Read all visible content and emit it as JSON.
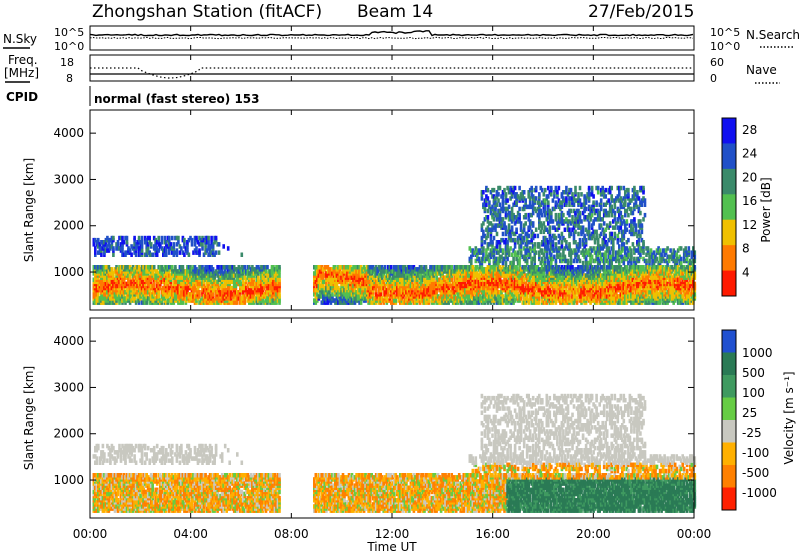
{
  "header": {
    "station_title": "Zhongshan Station (fitACF)",
    "beam": "Beam 14",
    "date": "27/Feb/2015"
  },
  "noise_panel": {
    "left_label": "N.Sky",
    "right_label": "N.Search",
    "left_ticks": [
      "10^5",
      "10^0"
    ],
    "right_ticks": [
      "10^5",
      "10^0"
    ]
  },
  "freq_panel": {
    "left_label_1": "Freq.",
    "left_label_2": "[MHz]",
    "right_label": "Nave",
    "left_ticks": [
      "18",
      "8"
    ],
    "right_ticks": [
      "60",
      "0"
    ]
  },
  "cpid": {
    "label": "CPID",
    "value": "normal (fast stereo) 153"
  },
  "x_axis": {
    "ticks": [
      "00:00",
      "04:00",
      "08:00",
      "12:00",
      "16:00",
      "20:00",
      "00:00"
    ],
    "label": "Time UT"
  },
  "chart_data": [
    {
      "type": "heatmap",
      "panel": "power",
      "ylabel": "Slant Range [km]",
      "yticks": [
        "1000",
        "2000",
        "3000",
        "4000"
      ],
      "ylim": [
        180,
        4500
      ],
      "xlim_hours": [
        0,
        24
      ],
      "colorbar_label": "Power [dB]",
      "colorbar_ticks": [
        "4",
        "8",
        "12",
        "16",
        "20",
        "24",
        "28"
      ],
      "colorbar_range": [
        0,
        30
      ],
      "colors": [
        "#1010f0",
        "#2050c8",
        "#3a8a6a",
        "#52c050",
        "#f0c000",
        "#ff7a00",
        "#ff1a00"
      ]
    },
    {
      "type": "heatmap",
      "panel": "velocity",
      "ylabel": "Slant Range [km]",
      "yticks": [
        "1000",
        "2000",
        "3000",
        "4000"
      ],
      "ylim": [
        180,
        4500
      ],
      "xlim_hours": [
        0,
        24
      ],
      "colorbar_label": "Velocity [m s⁻¹]",
      "colorbar_ticks": [
        "1000",
        "500",
        "100",
        "25",
        "-25",
        "-100",
        "-500",
        "-1000"
      ],
      "colors": [
        "#2050d0",
        "#2a7a55",
        "#3f9a60",
        "#66cc44",
        "#c8c8c0",
        "#ffb000",
        "#ff8000",
        "#ff2000"
      ]
    }
  ]
}
